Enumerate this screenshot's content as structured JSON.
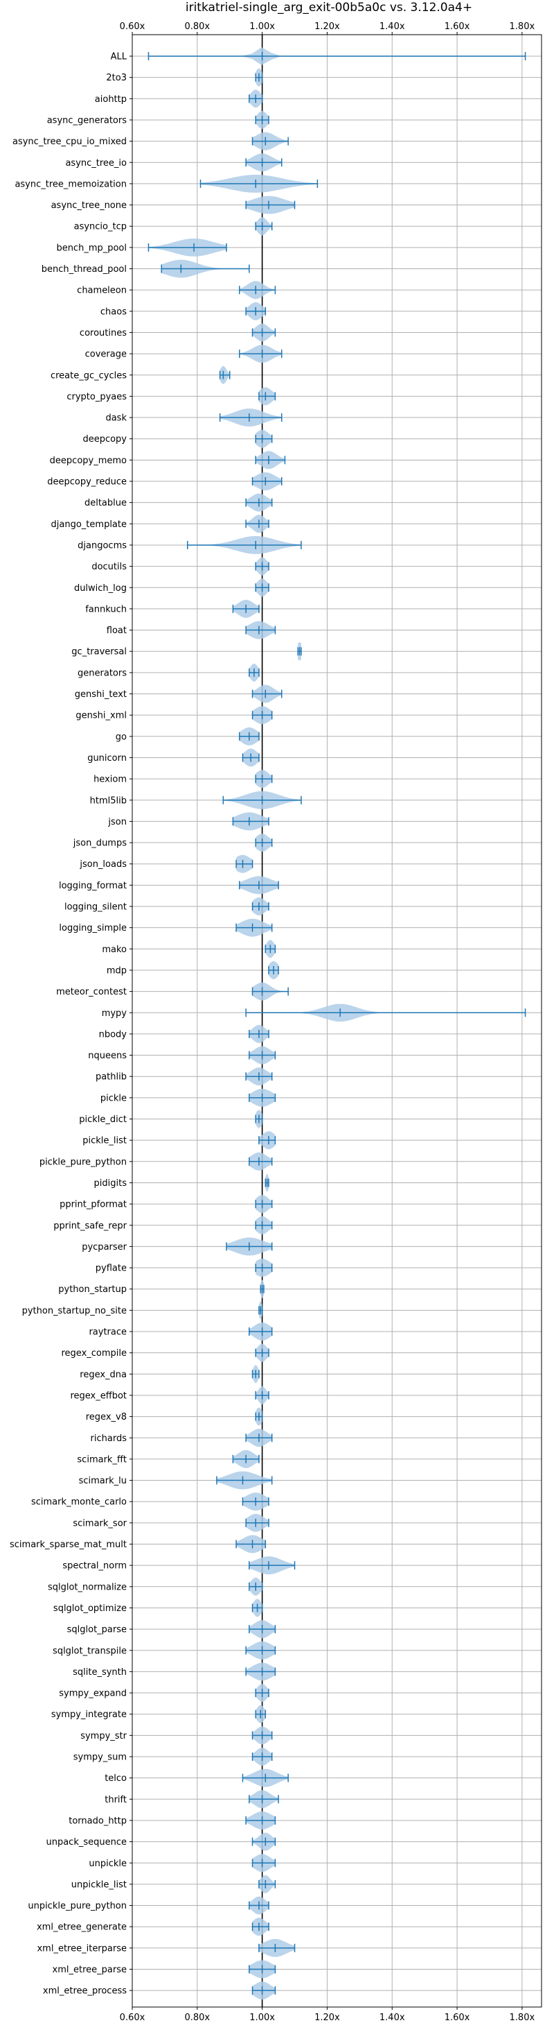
{
  "chart_data": {
    "type": "violin",
    "title": "iritkatriel-single_arg_exit-00b5a0c vs. 3.12.0a4+",
    "xlabel": "",
    "ylabel": "",
    "xlim": [
      0.6,
      1.86
    ],
    "x_ticks": [
      "0.60x",
      "0.80x",
      "1.00x",
      "1.20x",
      "1.40x",
      "1.60x",
      "1.80x"
    ],
    "x_tick_values": [
      0.6,
      0.8,
      1.0,
      1.2,
      1.4,
      1.6,
      1.8
    ],
    "reference_line": 1.0,
    "grid": true,
    "color": "#1f77b4",
    "fill_color": "#aecde8",
    "benchmarks": [
      {
        "name": "ALL",
        "min": 0.65,
        "max": 1.81,
        "median": 1.0,
        "spread": 0.02
      },
      {
        "name": "2to3",
        "min": 0.98,
        "max": 1.0,
        "median": 0.99,
        "spread": 0.01
      },
      {
        "name": "aiohttp",
        "min": 0.96,
        "max": 1.0,
        "median": 0.98,
        "spread": 0.015
      },
      {
        "name": "async_generators",
        "min": 0.98,
        "max": 1.02,
        "median": 1.0,
        "spread": 0.015
      },
      {
        "name": "async_tree_cpu_io_mixed",
        "min": 0.97,
        "max": 1.08,
        "median": 1.01,
        "spread": 0.03
      },
      {
        "name": "async_tree_io",
        "min": 0.95,
        "max": 1.06,
        "median": 1.0,
        "spread": 0.03
      },
      {
        "name": "async_tree_memoization",
        "min": 0.81,
        "max": 1.17,
        "median": 0.98,
        "spread": 0.08
      },
      {
        "name": "async_tree_none",
        "min": 0.95,
        "max": 1.1,
        "median": 1.02,
        "spread": 0.05
      },
      {
        "name": "asyncio_tcp",
        "min": 0.98,
        "max": 1.03,
        "median": 1.0,
        "spread": 0.015
      },
      {
        "name": "bench_mp_pool",
        "min": 0.65,
        "max": 0.89,
        "median": 0.79,
        "spread": 0.06
      },
      {
        "name": "bench_thread_pool",
        "min": 0.69,
        "max": 0.96,
        "median": 0.75,
        "spread": 0.05
      },
      {
        "name": "chameleon",
        "min": 0.93,
        "max": 1.04,
        "median": 0.98,
        "spread": 0.025
      },
      {
        "name": "chaos",
        "min": 0.95,
        "max": 1.01,
        "median": 0.98,
        "spread": 0.02
      },
      {
        "name": "coroutines",
        "min": 0.97,
        "max": 1.04,
        "median": 1.0,
        "spread": 0.02
      },
      {
        "name": "coverage",
        "min": 0.93,
        "max": 1.06,
        "median": 1.0,
        "spread": 0.03
      },
      {
        "name": "create_gc_cycles",
        "min": 0.87,
        "max": 0.9,
        "median": 0.88,
        "spread": 0.01
      },
      {
        "name": "crypto_pyaes",
        "min": 0.99,
        "max": 1.04,
        "median": 1.01,
        "spread": 0.02
      },
      {
        "name": "dask",
        "min": 0.87,
        "max": 1.06,
        "median": 0.96,
        "spread": 0.045
      },
      {
        "name": "deepcopy",
        "min": 0.98,
        "max": 1.03,
        "median": 1.0,
        "spread": 0.02
      },
      {
        "name": "deepcopy_memo",
        "min": 0.98,
        "max": 1.07,
        "median": 1.02,
        "spread": 0.025
      },
      {
        "name": "deepcopy_reduce",
        "min": 0.97,
        "max": 1.06,
        "median": 1.01,
        "spread": 0.03
      },
      {
        "name": "deltablue",
        "min": 0.95,
        "max": 1.03,
        "median": 0.99,
        "spread": 0.025
      },
      {
        "name": "django_template",
        "min": 0.95,
        "max": 1.02,
        "median": 0.99,
        "spread": 0.02
      },
      {
        "name": "djangocms",
        "min": 0.77,
        "max": 1.12,
        "median": 0.98,
        "spread": 0.06
      },
      {
        "name": "docutils",
        "min": 0.98,
        "max": 1.02,
        "median": 1.0,
        "spread": 0.015
      },
      {
        "name": "dulwich_log",
        "min": 0.98,
        "max": 1.02,
        "median": 1.0,
        "spread": 0.015
      },
      {
        "name": "fannkuch",
        "min": 0.91,
        "max": 0.99,
        "median": 0.95,
        "spread": 0.025
      },
      {
        "name": "float",
        "min": 0.95,
        "max": 1.04,
        "median": 0.99,
        "spread": 0.03
      },
      {
        "name": "gc_traversal",
        "min": 1.11,
        "max": 1.12,
        "median": 1.115,
        "spread": 0.01
      },
      {
        "name": "generators",
        "min": 0.96,
        "max": 0.99,
        "median": 0.975,
        "spread": 0.012
      },
      {
        "name": "genshi_text",
        "min": 0.97,
        "max": 1.06,
        "median": 1.01,
        "spread": 0.025
      },
      {
        "name": "genshi_xml",
        "min": 0.97,
        "max": 1.03,
        "median": 1.0,
        "spread": 0.025
      },
      {
        "name": "go",
        "min": 0.93,
        "max": 0.99,
        "median": 0.96,
        "spread": 0.025
      },
      {
        "name": "gunicorn",
        "min": 0.94,
        "max": 0.99,
        "median": 0.965,
        "spread": 0.02
      },
      {
        "name": "hexiom",
        "min": 0.98,
        "max": 1.03,
        "median": 1.0,
        "spread": 0.02
      },
      {
        "name": "html5lib",
        "min": 0.88,
        "max": 1.12,
        "median": 1.0,
        "spread": 0.05
      },
      {
        "name": "json",
        "min": 0.91,
        "max": 1.02,
        "median": 0.96,
        "spread": 0.04
      },
      {
        "name": "json_dumps",
        "min": 0.98,
        "max": 1.03,
        "median": 1.0,
        "spread": 0.02
      },
      {
        "name": "json_loads",
        "min": 0.92,
        "max": 0.97,
        "median": 0.94,
        "spread": 0.025
      },
      {
        "name": "logging_format",
        "min": 0.93,
        "max": 1.05,
        "median": 0.99,
        "spread": 0.04
      },
      {
        "name": "logging_silent",
        "min": 0.97,
        "max": 1.02,
        "median": 0.99,
        "spread": 0.02
      },
      {
        "name": "logging_simple",
        "min": 0.92,
        "max": 1.03,
        "median": 0.97,
        "spread": 0.035
      },
      {
        "name": "mako",
        "min": 1.01,
        "max": 1.04,
        "median": 1.025,
        "spread": 0.012
      },
      {
        "name": "mdp",
        "min": 1.02,
        "max": 1.05,
        "median": 1.035,
        "spread": 0.015
      },
      {
        "name": "meteor_contest",
        "min": 0.97,
        "max": 1.08,
        "median": 1.0,
        "spread": 0.025
      },
      {
        "name": "mypy",
        "min": 0.95,
        "max": 1.81,
        "median": 1.24,
        "spread": 0.05
      },
      {
        "name": "nbody",
        "min": 0.96,
        "max": 1.02,
        "median": 0.99,
        "spread": 0.02
      },
      {
        "name": "nqueens",
        "min": 0.96,
        "max": 1.04,
        "median": 1.0,
        "spread": 0.025
      },
      {
        "name": "pathlib",
        "min": 0.95,
        "max": 1.03,
        "median": 0.99,
        "spread": 0.025
      },
      {
        "name": "pickle",
        "min": 0.96,
        "max": 1.04,
        "median": 1.0,
        "spread": 0.03
      },
      {
        "name": "pickle_dict",
        "min": 0.98,
        "max": 1.0,
        "median": 0.99,
        "spread": 0.01
      },
      {
        "name": "pickle_list",
        "min": 0.99,
        "max": 1.04,
        "median": 1.02,
        "spread": 0.02
      },
      {
        "name": "pickle_pure_python",
        "min": 0.96,
        "max": 1.03,
        "median": 0.99,
        "spread": 0.025
      },
      {
        "name": "pidigits",
        "min": 1.01,
        "max": 1.02,
        "median": 1.015,
        "spread": 0.005
      },
      {
        "name": "pprint_pformat",
        "min": 0.98,
        "max": 1.03,
        "median": 1.0,
        "spread": 0.02
      },
      {
        "name": "pprint_safe_repr",
        "min": 0.98,
        "max": 1.03,
        "median": 1.0,
        "spread": 0.02
      },
      {
        "name": "pycparser",
        "min": 0.89,
        "max": 1.03,
        "median": 0.96,
        "spread": 0.045
      },
      {
        "name": "pyflate",
        "min": 0.98,
        "max": 1.03,
        "median": 1.0,
        "spread": 0.025
      },
      {
        "name": "python_startup",
        "min": 0.995,
        "max": 1.005,
        "median": 1.0,
        "spread": 0.005
      },
      {
        "name": "python_startup_no_site",
        "min": 0.99,
        "max": 1.0,
        "median": 0.995,
        "spread": 0.005
      },
      {
        "name": "raytrace",
        "min": 0.96,
        "max": 1.03,
        "median": 1.0,
        "spread": 0.025
      },
      {
        "name": "regex_compile",
        "min": 0.98,
        "max": 1.02,
        "median": 1.0,
        "spread": 0.015
      },
      {
        "name": "regex_dna",
        "min": 0.97,
        "max": 0.99,
        "median": 0.98,
        "spread": 0.008
      },
      {
        "name": "regex_effbot",
        "min": 0.98,
        "max": 1.02,
        "median": 1.0,
        "spread": 0.012
      },
      {
        "name": "regex_v8",
        "min": 0.98,
        "max": 1.0,
        "median": 0.99,
        "spread": 0.01
      },
      {
        "name": "richards",
        "min": 0.95,
        "max": 1.03,
        "median": 0.99,
        "spread": 0.025
      },
      {
        "name": "scimark_fft",
        "min": 0.91,
        "max": 0.99,
        "median": 0.95,
        "spread": 0.025
      },
      {
        "name": "scimark_lu",
        "min": 0.86,
        "max": 1.03,
        "median": 0.94,
        "spread": 0.045
      },
      {
        "name": "scimark_monte_carlo",
        "min": 0.94,
        "max": 1.02,
        "median": 0.98,
        "spread": 0.03
      },
      {
        "name": "scimark_sor",
        "min": 0.95,
        "max": 1.02,
        "median": 0.98,
        "spread": 0.025
      },
      {
        "name": "scimark_sparse_mat_mult",
        "min": 0.92,
        "max": 1.01,
        "median": 0.97,
        "spread": 0.03
      },
      {
        "name": "spectral_norm",
        "min": 0.96,
        "max": 1.1,
        "median": 1.02,
        "spread": 0.04
      },
      {
        "name": "sqlglot_normalize",
        "min": 0.96,
        "max": 1.0,
        "median": 0.98,
        "spread": 0.015
      },
      {
        "name": "sqlglot_optimize",
        "min": 0.97,
        "max": 1.0,
        "median": 0.985,
        "spread": 0.012
      },
      {
        "name": "sqlglot_parse",
        "min": 0.96,
        "max": 1.04,
        "median": 1.0,
        "spread": 0.025
      },
      {
        "name": "sqlglot_transpile",
        "min": 0.95,
        "max": 1.04,
        "median": 1.0,
        "spread": 0.03
      },
      {
        "name": "sqlite_synth",
        "min": 0.95,
        "max": 1.04,
        "median": 1.0,
        "spread": 0.03
      },
      {
        "name": "sympy_expand",
        "min": 0.98,
        "max": 1.02,
        "median": 1.0,
        "spread": 0.015
      },
      {
        "name": "sympy_integrate",
        "min": 0.98,
        "max": 1.01,
        "median": 0.995,
        "spread": 0.012
      },
      {
        "name": "sympy_str",
        "min": 0.97,
        "max": 1.03,
        "median": 1.0,
        "spread": 0.02
      },
      {
        "name": "sympy_sum",
        "min": 0.97,
        "max": 1.03,
        "median": 1.0,
        "spread": 0.02
      },
      {
        "name": "telco",
        "min": 0.94,
        "max": 1.08,
        "median": 1.01,
        "spread": 0.035
      },
      {
        "name": "thrift",
        "min": 0.96,
        "max": 1.05,
        "median": 1.0,
        "spread": 0.025
      },
      {
        "name": "tornado_http",
        "min": 0.95,
        "max": 1.04,
        "median": 1.0,
        "spread": 0.03
      },
      {
        "name": "unpack_sequence",
        "min": 0.97,
        "max": 1.04,
        "median": 1.01,
        "spread": 0.02
      },
      {
        "name": "unpickle",
        "min": 0.97,
        "max": 1.04,
        "median": 1.0,
        "spread": 0.025
      },
      {
        "name": "unpickle_list",
        "min": 0.99,
        "max": 1.04,
        "median": 1.01,
        "spread": 0.015
      },
      {
        "name": "unpickle_pure_python",
        "min": 0.96,
        "max": 1.02,
        "median": 0.99,
        "spread": 0.02
      },
      {
        "name": "xml_etree_generate",
        "min": 0.97,
        "max": 1.02,
        "median": 0.99,
        "spread": 0.02
      },
      {
        "name": "xml_etree_iterparse",
        "min": 0.99,
        "max": 1.1,
        "median": 1.04,
        "spread": 0.035
      },
      {
        "name": "xml_etree_parse",
        "min": 0.96,
        "max": 1.04,
        "median": 1.0,
        "spread": 0.03
      },
      {
        "name": "xml_etree_process",
        "min": 0.97,
        "max": 1.04,
        "median": 1.0,
        "spread": 0.025
      }
    ]
  }
}
